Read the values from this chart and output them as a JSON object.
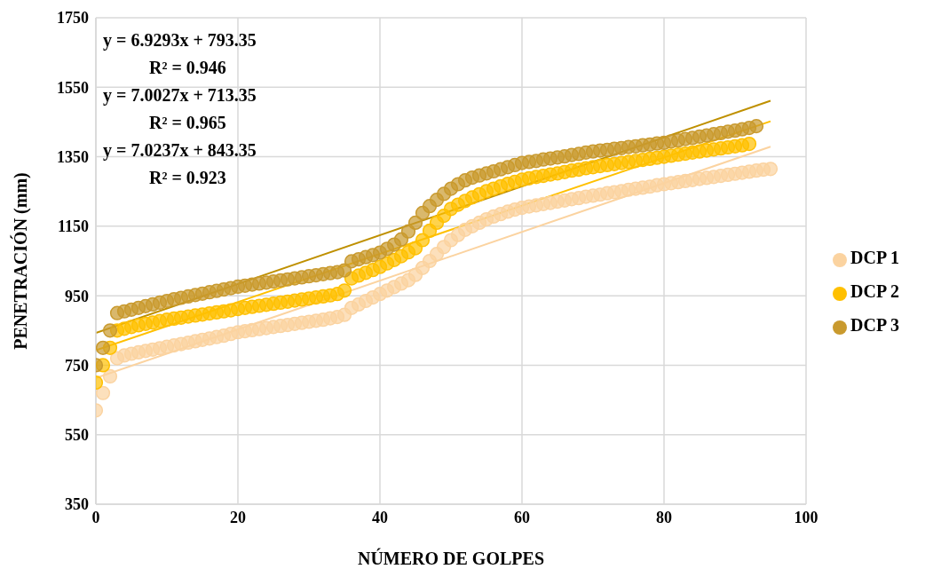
{
  "chart_data": {
    "type": "scatter",
    "xlabel": "NÚMERO DE GOLPES",
    "ylabel": "PENETRACIÓN (mm)",
    "xlim": [
      0,
      100
    ],
    "xticks": [
      0,
      20,
      40,
      60,
      80,
      100
    ],
    "ylim": [
      350,
      1750
    ],
    "yticks": [
      350,
      550,
      750,
      950,
      1150,
      1350,
      1550,
      1750
    ],
    "grid": true,
    "legend": "right",
    "marker": "circle",
    "annotations": [
      "y = 6.9293x + 793.35",
      "R² = 0.946",
      "y = 7.0027x + 713.35",
      "R² = 0.965",
      "y = 7.0237x + 843.35",
      "R² = 0.923"
    ],
    "series": [
      {
        "name": "DCP 1",
        "color": "#fbd3a0",
        "x": [
          0,
          1,
          2,
          3,
          4,
          5,
          6,
          7,
          8,
          9,
          10,
          11,
          12,
          13,
          14,
          15,
          16,
          17,
          18,
          19,
          20,
          21,
          22,
          23,
          24,
          25,
          26,
          27,
          28,
          29,
          30,
          31,
          32,
          33,
          34,
          35,
          36,
          37,
          38,
          39,
          40,
          41,
          42,
          43,
          44,
          45,
          46,
          47,
          48,
          49,
          50,
          51,
          52,
          53,
          54,
          55,
          56,
          57,
          58,
          59,
          60,
          61,
          62,
          63,
          64,
          65,
          66,
          67,
          68,
          69,
          70,
          71,
          72,
          73,
          74,
          75,
          76,
          77,
          78,
          79,
          80,
          81,
          82,
          83,
          84,
          85,
          86,
          87,
          88,
          89,
          90,
          91,
          92,
          93,
          94,
          95
        ],
        "values": [
          620,
          670,
          718,
          770,
          778,
          783,
          787,
          791,
          795,
          799,
          803,
          807,
          811,
          815,
          819,
          823,
          827,
          831,
          835,
          840,
          845,
          848,
          851,
          854,
          857,
          860,
          863,
          866,
          869,
          872,
          875,
          878,
          881,
          885,
          889,
          895,
          915,
          925,
          935,
          945,
          955,
          965,
          975,
          985,
          995,
          1010,
          1030,
          1050,
          1070,
          1090,
          1110,
          1125,
          1140,
          1150,
          1160,
          1170,
          1178,
          1185,
          1192,
          1198,
          1203,
          1207,
          1210,
          1214,
          1217,
          1221,
          1224,
          1228,
          1231,
          1235,
          1238,
          1241,
          1245,
          1248,
          1251,
          1255,
          1258,
          1261,
          1264,
          1268,
          1271,
          1274,
          1277,
          1280,
          1283,
          1286,
          1289,
          1292,
          1295,
          1298,
          1301,
          1304,
          1307,
          1310,
          1313,
          1315
        ]
      },
      {
        "name": "DCP 2",
        "color": "#ffc000",
        "x": [
          0,
          1,
          2,
          3,
          4,
          5,
          6,
          7,
          8,
          9,
          10,
          11,
          12,
          13,
          14,
          15,
          16,
          17,
          18,
          19,
          20,
          21,
          22,
          23,
          24,
          25,
          26,
          27,
          28,
          29,
          30,
          31,
          32,
          33,
          34,
          35,
          36,
          37,
          38,
          39,
          40,
          41,
          42,
          43,
          44,
          45,
          46,
          47,
          48,
          49,
          50,
          51,
          52,
          53,
          54,
          55,
          56,
          57,
          58,
          59,
          60,
          61,
          62,
          63,
          64,
          65,
          66,
          67,
          68,
          69,
          70,
          71,
          72,
          73,
          74,
          75,
          76,
          77,
          78,
          79,
          80,
          81,
          82,
          83,
          84,
          85,
          86,
          87,
          88,
          89,
          90,
          91,
          92
        ],
        "values": [
          700,
          750,
          800,
          850,
          855,
          860,
          865,
          869,
          873,
          877,
          881,
          884,
          887,
          890,
          893,
          896,
          899,
          902,
          905,
          908,
          912,
          915,
          918,
          921,
          924,
          927,
          930,
          933,
          936,
          939,
          942,
          945,
          948,
          951,
          955,
          965,
          1000,
          1008,
          1016,
          1024,
          1033,
          1043,
          1053,
          1064,
          1075,
          1087,
          1110,
          1137,
          1160,
          1180,
          1200,
          1212,
          1223,
          1233,
          1242,
          1251,
          1258,
          1265,
          1272,
          1278,
          1284,
          1288,
          1292,
          1295,
          1299,
          1302,
          1306,
          1310,
          1313,
          1317,
          1320,
          1323,
          1326,
          1329,
          1332,
          1335,
          1338,
          1341,
          1344,
          1347,
          1350,
          1353,
          1356,
          1359,
          1362,
          1365,
          1368,
          1371,
          1374,
          1377,
          1380,
          1383,
          1387
        ]
      },
      {
        "name": "DCP 3",
        "color": "#c99a2e",
        "x": [
          0,
          1,
          2,
          3,
          4,
          5,
          6,
          7,
          8,
          9,
          10,
          11,
          12,
          13,
          14,
          15,
          16,
          17,
          18,
          19,
          20,
          21,
          22,
          23,
          24,
          25,
          26,
          27,
          28,
          29,
          30,
          31,
          32,
          33,
          34,
          35,
          36,
          37,
          38,
          39,
          40,
          41,
          42,
          43,
          44,
          45,
          46,
          47,
          48,
          49,
          50,
          51,
          52,
          53,
          54,
          55,
          56,
          57,
          58,
          59,
          60,
          61,
          62,
          63,
          64,
          65,
          66,
          67,
          68,
          69,
          70,
          71,
          72,
          73,
          74,
          75,
          76,
          77,
          78,
          79,
          80,
          81,
          82,
          83,
          84,
          85,
          86,
          87,
          88,
          89,
          90,
          91,
          92,
          93
        ],
        "values": [
          750,
          800,
          850,
          900,
          905,
          910,
          915,
          920,
          925,
          930,
          935,
          940,
          944,
          948,
          952,
          956,
          960,
          964,
          968,
          972,
          976,
          979,
          982,
          985,
          988,
          991,
          994,
          997,
          1000,
          1003,
          1006,
          1009,
          1012,
          1015,
          1018,
          1023,
          1049,
          1055,
          1061,
          1067,
          1074,
          1085,
          1097,
          1112,
          1135,
          1160,
          1188,
          1208,
          1226,
          1243,
          1258,
          1271,
          1282,
          1290,
          1296,
          1302,
          1308,
          1314,
          1320,
          1326,
          1332,
          1335,
          1338,
          1342,
          1345,
          1348,
          1351,
          1355,
          1358,
          1362,
          1365,
          1368,
          1370,
          1373,
          1375,
          1378,
          1380,
          1383,
          1385,
          1388,
          1390,
          1394,
          1397,
          1401,
          1404,
          1408,
          1411,
          1415,
          1418,
          1422,
          1425,
          1429,
          1433,
          1438
        ]
      },
      {
        "type": "line",
        "marker": "none",
        "color": "#fbd3a0",
        "x": [
          0,
          95
        ],
        "values": [
          713,
          1379
        ]
      },
      {
        "type": "line",
        "marker": "none",
        "color": "#ffc000",
        "x": [
          0,
          95
        ],
        "values": [
          793,
          1452
        ]
      },
      {
        "type": "line",
        "marker": "none",
        "color": "#bf9000",
        "x": [
          0,
          95
        ],
        "values": [
          843,
          1511
        ]
      }
    ]
  }
}
